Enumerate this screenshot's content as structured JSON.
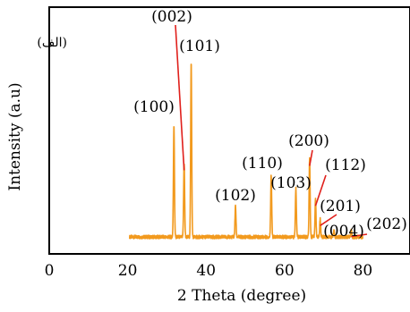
{
  "chart_data": {
    "type": "line",
    "xlabel": "2 Theta (degree)",
    "ylabel": "Intensity (a.u)",
    "panel_label": "(الف)",
    "xlim": [
      0,
      92
    ],
    "ylim": [
      0,
      105
    ],
    "x_ticks": [
      0,
      20,
      40,
      60,
      80
    ],
    "grid": false,
    "colors": {
      "frame": "#000000",
      "trace": "#f29a1e",
      "leader": "#e0201c",
      "text": "#000000"
    },
    "peaks": [
      {
        "label": "(100)",
        "x": 31.8,
        "y": 51
      },
      {
        "label": "(002)",
        "x": 34.4,
        "y": 34
      },
      {
        "label": "(101)",
        "x": 36.2,
        "y": 80
      },
      {
        "label": "(102)",
        "x": 47.5,
        "y": 14
      },
      {
        "label": "(110)",
        "x": 56.6,
        "y": 28
      },
      {
        "label": "(103)",
        "x": 62.9,
        "y": 22
      },
      {
        "label": "(200)",
        "x": 66.4,
        "y": 36
      },
      {
        "label": "(112)",
        "x": 67.9,
        "y": 17
      },
      {
        "label": "(201)",
        "x": 69.1,
        "y": 8
      },
      {
        "label": "(004)",
        "x": 72.6,
        "y": 3
      },
      {
        "label": "(202)",
        "x": 77.0,
        "y": 3
      }
    ]
  }
}
